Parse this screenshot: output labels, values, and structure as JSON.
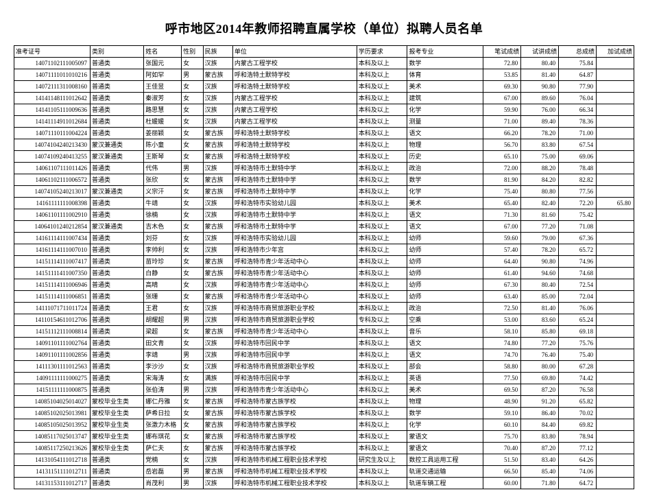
{
  "title": "呼市地区2014年教师招聘直属学校（单位）拟聘人员名单",
  "columns": [
    "准考证号",
    "类别",
    "姓名",
    "性别",
    "民族",
    "单位",
    "学历要求",
    "报考专业",
    "笔试成绩",
    "试讲成绩",
    "总成绩",
    "加试成绩"
  ],
  "col_classes": [
    "col-id",
    "col-cat",
    "col-name",
    "col-sex",
    "col-eth",
    "col-unit",
    "col-edu",
    "col-maj",
    "col-s1",
    "col-s2",
    "col-s3",
    "col-s4"
  ],
  "rows": [
    [
      "14071102111005097",
      "普通类",
      "张国元",
      "女",
      "汉族",
      "内蒙古工程学校",
      "本科及以上",
      "数学",
      "72.80",
      "80.40",
      "75.84",
      ""
    ],
    [
      "14071111011010216",
      "普通类",
      "阿如罕",
      "男",
      "蒙古族",
      "呼和浩特土默特学校",
      "本科及以上",
      "体育",
      "53.85",
      "81.40",
      "64.87",
      ""
    ],
    [
      "14072111311008160",
      "普通类",
      "王佳昱",
      "女",
      "汉族",
      "呼和浩特土默特学校",
      "本科及以上",
      "美术",
      "69.30",
      "90.80",
      "77.90",
      ""
    ],
    [
      "14141148111012642",
      "普通类",
      "秦淑芳",
      "女",
      "汉族",
      "内蒙古工程学校",
      "本科及以上",
      "建筑",
      "67.00",
      "89.60",
      "76.04",
      ""
    ],
    [
      "14141105111009636",
      "普通类",
      "路思慧",
      "女",
      "汉族",
      "内蒙古工程学校",
      "本科及以上",
      "化学",
      "59.90",
      "76.00",
      "66.34",
      ""
    ],
    [
      "14141114911012684",
      "普通类",
      "杜媛媛",
      "女",
      "汉族",
      "内蒙古工程学校",
      "本科及以上",
      "测量",
      "71.00",
      "89.40",
      "78.36",
      ""
    ],
    [
      "14071110111004224",
      "普通类",
      "姜丽颖",
      "女",
      "蒙古族",
      "呼和浩特土默特学校",
      "本科及以上",
      "语文",
      "66.20",
      "78.20",
      "71.00",
      ""
    ],
    [
      "14074104240213430",
      "蒙汉兼通类",
      "陈小童",
      "女",
      "蒙古族",
      "呼和浩特土默特学校",
      "本科及以上",
      "物理",
      "56.70",
      "83.80",
      "67.54",
      ""
    ],
    [
      "14074109240413255",
      "蒙汉兼通类",
      "王斯琴",
      "女",
      "蒙古族",
      "呼和浩特土默特学校",
      "本科及以上",
      "历史",
      "65.10",
      "75.00",
      "69.06",
      ""
    ],
    [
      "14061107111011426",
      "普通类",
      "代伟",
      "男",
      "汉族",
      "呼和浩特市土默特中学",
      "本科及以上",
      "政治",
      "72.00",
      "88.20",
      "78.48",
      ""
    ],
    [
      "14061102111006572",
      "普通类",
      "张欣",
      "女",
      "蒙古族",
      "呼和浩特市土默特中学",
      "本科及以上",
      "数学",
      "81.90",
      "84.20",
      "82.82",
      ""
    ],
    [
      "14074105240213017",
      "蒙汉兼通类",
      "义宗汗",
      "女",
      "蒙古族",
      "呼和浩特市土默特中学",
      "本科及以上",
      "化学",
      "75.40",
      "80.80",
      "77.56",
      ""
    ],
    [
      "14161111111008398",
      "普通类",
      "牛靖",
      "女",
      "汉族",
      "呼和浩特市实验幼儿园",
      "本科及以上",
      "美术",
      "65.40",
      "82.40",
      "72.20",
      "65.80"
    ],
    [
      "14061101111002910",
      "普通类",
      "徐楠",
      "女",
      "汉族",
      "呼和浩特市土默特中学",
      "本科及以上",
      "语文",
      "71.30",
      "81.60",
      "75.42",
      ""
    ],
    [
      "14064101240212854",
      "蒙汉兼通类",
      "吉木色",
      "女",
      "蒙古族",
      "呼和浩特市土默特中学",
      "本科及以上",
      "语文",
      "67.00",
      "77.20",
      "71.08",
      ""
    ],
    [
      "14161114111007434",
      "普通类",
      "刘芬",
      "女",
      "汉族",
      "呼和浩特市实验幼儿园",
      "本科及以上",
      "幼师",
      "59.60",
      "79.00",
      "67.36",
      ""
    ],
    [
      "14161114111007010",
      "普通类",
      "李帅利",
      "女",
      "汉族",
      "呼和浩特市少年宫",
      "本科及以上",
      "幼师",
      "57.40",
      "78.20",
      "65.72",
      ""
    ],
    [
      "14151114111007417",
      "普通类",
      "苗玲珍",
      "女",
      "蒙古族",
      "呼和浩特市青少年活动中心",
      "本科及以上",
      "幼师",
      "64.40",
      "90.80",
      "74.96",
      ""
    ],
    [
      "14151111411007350",
      "普通类",
      "白静",
      "女",
      "蒙古族",
      "呼和浩特市青少年活动中心",
      "本科及以上",
      "幼师",
      "61.40",
      "94.60",
      "74.68",
      ""
    ],
    [
      "14151114111006946",
      "普通类",
      "高晴",
      "女",
      "汉族",
      "呼和浩特市青少年活动中心",
      "本科及以上",
      "幼师",
      "67.30",
      "80.40",
      "72.54",
      ""
    ],
    [
      "14151114111006851",
      "普通类",
      "张珊",
      "女",
      "蒙古族",
      "呼和浩特市青少年活动中心",
      "本科及以上",
      "幼师",
      "63.40",
      "85.00",
      "72.04",
      ""
    ],
    [
      "14111071711011724",
      "普通类",
      "王君",
      "女",
      "汉族",
      "呼和浩特市商贸旅游职业学校",
      "本科及以上",
      "政治",
      "72.50",
      "81.40",
      "76.06",
      ""
    ],
    [
      "14110154611012706",
      "普通类",
      "胡耀超",
      "男",
      "汉族",
      "呼和浩特市商贸旅游职业学校",
      "专科及以上",
      "空乘",
      "53.00",
      "83.60",
      "65.24",
      ""
    ],
    [
      "14151112111008814",
      "普通类",
      "梁超",
      "女",
      "蒙古族",
      "呼和浩特市青少年活动中心",
      "本科及以上",
      "音乐",
      "58.10",
      "85.80",
      "69.18",
      ""
    ],
    [
      "14091101111002764",
      "普通类",
      "田文青",
      "女",
      "汉族",
      "呼和浩特市回民中学",
      "本科及以上",
      "语文",
      "74.80",
      "77.20",
      "75.76",
      ""
    ],
    [
      "14091101111002856",
      "普通类",
      "李靖",
      "男",
      "汉族",
      "呼和浩特市回民中学",
      "本科及以上",
      "语文",
      "74.70",
      "76.40",
      "75.40",
      ""
    ],
    [
      "14111301111012563",
      "普通类",
      "李沙沙",
      "女",
      "汉族",
      "呼和浩特市商贸旅游职业学校",
      "本科及以上",
      "部会",
      "58.80",
      "80.00",
      "67.28",
      ""
    ],
    [
      "14091111111000275",
      "普通类",
      "宋海涛",
      "女",
      "满族",
      "呼和浩特市回民中学",
      "本科及以上",
      "英语",
      "77.50",
      "69.80",
      "74.42",
      ""
    ],
    [
      "14151111111000875",
      "普通类",
      "张伯涛",
      "男",
      "汉族",
      "呼和浩特市青少年活动中心",
      "本科及以上",
      "美术",
      "69.50",
      "87.20",
      "76.58",
      ""
    ],
    [
      "14085104025014027",
      "蒙校毕业生类",
      "娜仁丹雅",
      "女",
      "蒙古族",
      "呼和浩特市蒙古族学校",
      "本科及以上",
      "物理",
      "48.90",
      "91.20",
      "65.82",
      ""
    ],
    [
      "14085102025013981",
      "蒙校毕业生类",
      "萨希日拉",
      "女",
      "蒙古族",
      "呼和浩特市蒙古族学校",
      "本科及以上",
      "数学",
      "59.10",
      "86.40",
      "70.02",
      ""
    ],
    [
      "14085105025013952",
      "蒙校毕业生类",
      "张激力木格",
      "女",
      "蒙古族",
      "呼和浩特市蒙古族学校",
      "本科及以上",
      "化学",
      "60.10",
      "84.40",
      "69.82",
      ""
    ],
    [
      "14085117025013747",
      "蒙校毕业生类",
      "娜布琪花",
      "女",
      "蒙古族",
      "呼和浩特市蒙古族学校",
      "本科及以上",
      "蒙语文",
      "75.70",
      "83.80",
      "78.94",
      ""
    ],
    [
      "14085117250213626",
      "蒙校毕业生类",
      "萨仁夫",
      "女",
      "蒙古族",
      "呼和浩特市蒙古族学校",
      "本科及以上",
      "蒙语文",
      "70.40",
      "87.20",
      "77.12",
      ""
    ],
    [
      "14131054111012718",
      "普通类",
      "党楠",
      "女",
      "汉族",
      "呼和浩特市机械工程职业技术学校",
      "研究生及以上",
      "数控工具运用工程",
      "51.50",
      "83.40",
      "64.26",
      ""
    ],
    [
      "14131151111012711",
      "普通类",
      "岳岩磊",
      "男",
      "蒙古族",
      "呼和浩特市机械工程职业技术学校",
      "本科及以上",
      "轨道交通运输",
      "66.50",
      "85.40",
      "74.06",
      ""
    ],
    [
      "14131153111012717",
      "普通类",
      "肖茂利",
      "男",
      "汉族",
      "呼和浩特市机械工程职业技术学校",
      "本科及以上",
      "轨道车辆工程",
      "60.00",
      "71.80",
      "64.72",
      ""
    ]
  ]
}
